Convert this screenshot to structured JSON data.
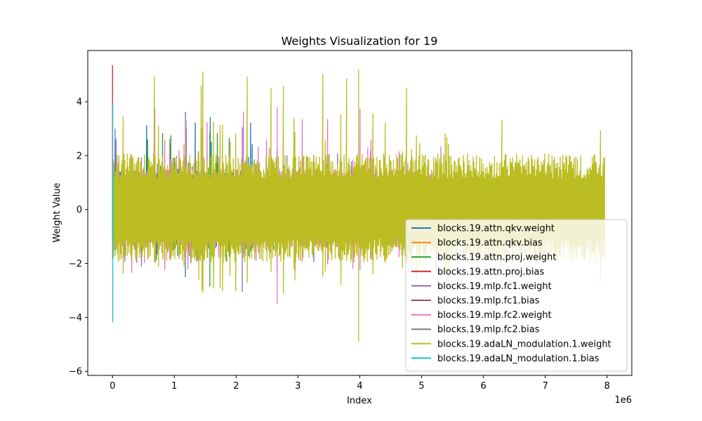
{
  "chart_data": {
    "type": "line",
    "title": "Weights Visualization for 19",
    "xlabel": "Index",
    "ylabel": "Weight Value",
    "x_offset_label": "1e6",
    "xlim": [
      -0.4,
      8.4
    ],
    "ylim": [
      -6.15,
      5.9
    ],
    "x_ticks": [
      0,
      1,
      2,
      3,
      4,
      5,
      6,
      7,
      8
    ],
    "x_tick_labels": [
      "0",
      "1",
      "2",
      "3",
      "4",
      "5",
      "6",
      "7",
      "8"
    ],
    "y_ticks": [
      -6,
      -4,
      -2,
      0,
      2,
      4
    ],
    "y_tick_labels": [
      "−6",
      "−4",
      "−2",
      "0",
      "2",
      "4"
    ],
    "grid": false,
    "legend_position": "lower-right",
    "series": [
      {
        "name": "blocks.19.attn.qkv.weight",
        "color": "#1f77b4",
        "x_start": 0.0,
        "x_end": 2.36,
        "ymin": -2.5,
        "ymax": 3.62
      },
      {
        "name": "blocks.19.attn.qkv.bias",
        "color": "#ff7f0e",
        "x_start": 0.0,
        "x_end": 0.004,
        "ymin": -0.5,
        "ymax": 0.5
      },
      {
        "name": "blocks.19.attn.proj.weight",
        "color": "#2ca02c",
        "x_start": 0.0,
        "x_end": 3.15,
        "ymin": -2.85,
        "ymax": 2.85
      },
      {
        "name": "blocks.19.attn.proj.bias",
        "color": "#d62728",
        "x_start": 0.0,
        "x_end": 0.001,
        "ymin": -1.0,
        "ymax": 5.35
      },
      {
        "name": "blocks.19.mlp.fc1.weight",
        "color": "#9467bd",
        "x_start": 0.0,
        "x_end": 4.2,
        "ymin": -3.05,
        "ymax": 3.05
      },
      {
        "name": "blocks.19.mlp.fc1.bias",
        "color": "#8c564b",
        "x_start": 0.0,
        "x_end": 0.005,
        "ymin": -0.5,
        "ymax": 0.5
      },
      {
        "name": "blocks.19.mlp.fc2.weight",
        "color": "#e377c2",
        "x_start": 0.0,
        "x_end": 5.33,
        "ymin": -3.5,
        "ymax": 3.8
      },
      {
        "name": "blocks.19.mlp.fc2.bias",
        "color": "#7f7f7f",
        "x_start": 0.0,
        "x_end": 0.001,
        "ymin": -0.3,
        "ymax": 0.3
      },
      {
        "name": "blocks.19.adaLN_modulation.1.weight",
        "color": "#bcbd22",
        "x_start": 0.0,
        "x_end": 7.96,
        "ymin": -4.9,
        "ymax": 5.2
      },
      {
        "name": "blocks.19.adaLN_modulation.1.bias",
        "color": "#17becf",
        "x_start": 0.0,
        "x_end": 0.008,
        "ymin": -4.18,
        "ymax": 3.92
      }
    ]
  }
}
